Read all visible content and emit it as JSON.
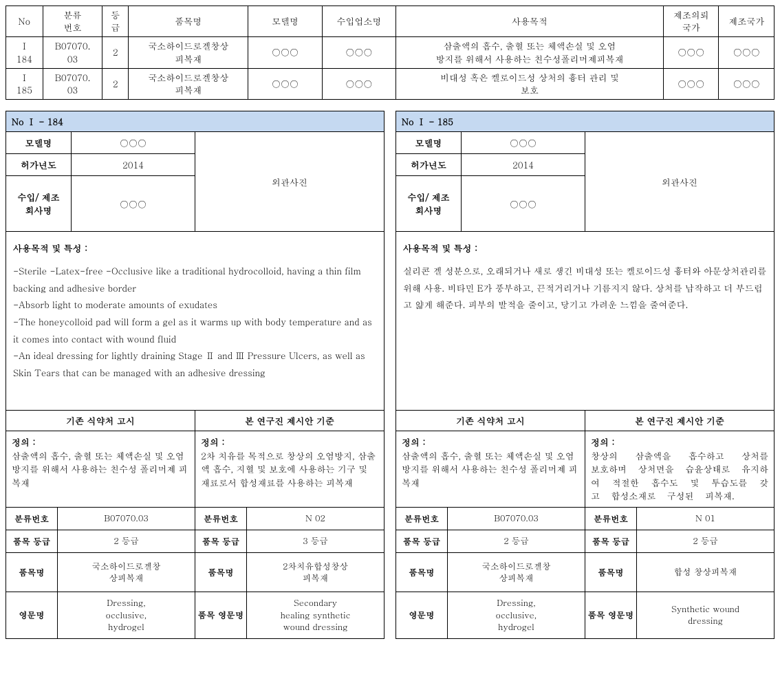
{
  "top_table": {
    "headers": [
      "No",
      "분류\n번호",
      "등\n급",
      "품목명",
      "모델명",
      "수입업소명",
      "사용목적",
      "제조의뢰\n국가",
      "제조국가"
    ],
    "rows": [
      {
        "no": "Ⅰ\n184",
        "code": "B07070.\n03",
        "grade": "2",
        "product": "국소하이드로겔창상\n피복재",
        "model": "○○○",
        "importer": "○○○",
        "purpose": "삼출액의 흡수, 출혈 또는 체액손실 및 오염\n방지를 위해서 사용하는 친수성폴리머제피복재",
        "mfr_req": "○○○",
        "mfr_country": "○○○"
      },
      {
        "no": "Ⅰ\n185",
        "code": "B07070.\n03",
        "grade": "2",
        "product": "국소하이드로겔창상\n피복재",
        "model": "○○○",
        "importer": "○○○",
        "purpose": "비대성 혹은 켈로이드성 상처의 흉터 관리 및\n보호",
        "mfr_req": "○○○",
        "mfr_country": "○○○"
      }
    ]
  },
  "card184": {
    "title": "No Ⅰ - 184",
    "meta": {
      "model_label": "모델명",
      "model_value": "○○○",
      "year_label": "허가년도",
      "year_value": "2014",
      "company_label": "수입/ 제조\n회사명",
      "company_value": "○○○",
      "photo_label": "외관사진"
    },
    "usage_title": "사용목적 및 특성 :",
    "usage_body": "-Sterile   -Latex-free   -Occlusive like a traditional hydrocolloid, having a thin film backing and adhesive border\n-Absorb light to moderate amounts of exudates\n-The honeycolloid pad will form a gel as it warms up with body temperature and as it comes into contact with wound fluid\n-An ideal dressing for lightly draining Stage Ⅱ and Ⅲ Pressure Ulcers, as well as Skin Tears that can be managed with an adhesive dressing",
    "compare_left_title": "기존 식약처 고시",
    "compare_right_title": "본 연구진 제시안 기준",
    "def_left_title": "정의 :",
    "def_left_body": "삼출액의 흡수, 출혈 또는 체액손실 및 오염 방지를 위해서 사용하는 친수성 폴리머제 피복재",
    "def_right_title": "정의 :",
    "def_right_body": "2차 치유를 목적으로 창상의 오염방지, 삼출액 흡수, 지혈 및 보호에 사용하는 기구 및 재료로서 합성재료를 사용하는 피복재",
    "grid": {
      "code_label": "분류번호",
      "code_left": "B07070.03",
      "code_right": "N 02",
      "grade_label": "품목 등급",
      "grade_left": "2 등급",
      "grade_right": "3 등급",
      "prod_label": "품목명",
      "prod_left": "국소하이드로겔창\n상피복재",
      "prod_right": "2차치유합성창상\n피복재",
      "en_label_left": "영문명",
      "en_left": "Dressing,\nocclusive,\nhydrogel",
      "en_label_right": "품목 영문명",
      "en_right": "Secondary\nhealing synthetic\nwound dressing"
    }
  },
  "card185": {
    "title": "No Ⅰ - 185",
    "meta": {
      "model_label": "모델명",
      "model_value": "○○○",
      "year_label": "허가년도",
      "year_value": "2014",
      "company_label": "수입/ 제조\n회사명",
      "company_value": "○○○",
      "photo_label": "외관사진"
    },
    "usage_title": "사용목적 및 특성 :",
    "usage_body": "실리콘 겔 성분으로, 오래되거나 새로 생긴 비대성 또는 켈로이드성 흉터와 아문상처관리를 위해 사용. 비타민 E가 풍부하고, 끈적거리거나 기름지지 않다. 상처를 납작하고 더 부드럽고 얇게 해준다. 피부의 발적을 줄이고, 당기고 가려운 느낌을 줄여준다.",
    "compare_left_title": "기존 식약처 고시",
    "compare_right_title": "본 연구진 제시안 기준",
    "def_left_title": "정의 :",
    "def_left_body": "삼출액의 흡수, 출혈 또는 체액손실 및 오염 방지를 위해서 사용하는 친수성 폴리머제 피복재",
    "def_right_title": "정의 :",
    "def_right_body": "창상의 삼출액을 흡수하고 상처를 보호하며 상처면을 습윤상태로 유지하여 적절한 흡수도 및 투습도를 갖고 합성소재로 구성된 피복재.",
    "grid": {
      "code_label": "분류번호",
      "code_left": "B07070.03",
      "code_right": "N 01",
      "grade_label": "품목 등급",
      "grade_left": "2 등급",
      "grade_right": "2 등급",
      "prod_label": "품목명",
      "prod_left": "국소하이드로겔창\n상피복재",
      "prod_right": "합성 창상피복재",
      "en_label_left": "영문명",
      "en_left": "Dressing,\nocclusive,\nhydrogel",
      "en_label_right": "품목 영문명",
      "en_right": "Synthetic wound\ndressing"
    }
  }
}
